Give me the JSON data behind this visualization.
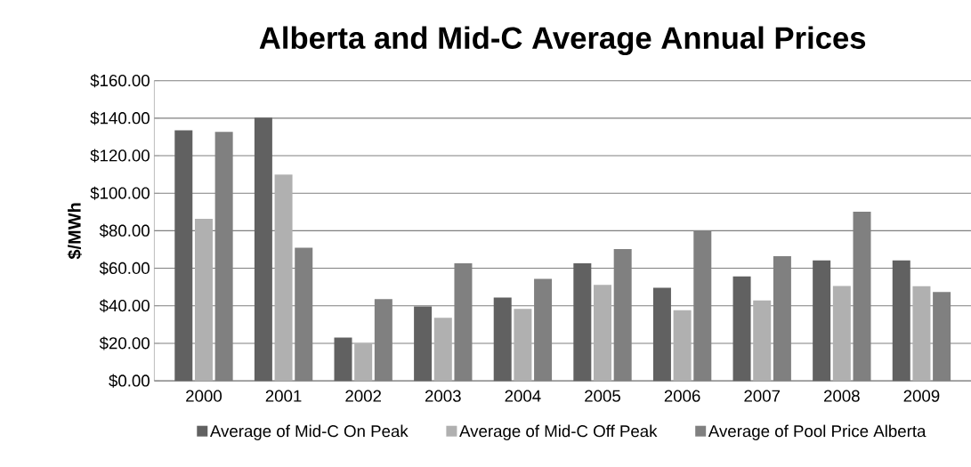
{
  "chart_data": {
    "type": "bar",
    "title": "Alberta and Mid-C Average Annual Prices",
    "ylabel": "$/MWh",
    "categories": [
      "2000",
      "2001",
      "2002",
      "2003",
      "2004",
      "2005",
      "2006",
      "2007",
      "2008",
      "2009"
    ],
    "series": [
      {
        "name": "Average of Mid-C On Peak",
        "color": "#616161",
        "values": [
          133.5,
          140.3,
          23.0,
          39.6,
          44.4,
          62.6,
          49.6,
          55.7,
          64.2,
          64.2
        ]
      },
      {
        "name": "Average of Mid-C Off Peak",
        "color": "#b0b0b0",
        "values": [
          86.3,
          109.9,
          19.8,
          33.6,
          38.4,
          51.2,
          37.6,
          42.8,
          50.6,
          50.4
        ]
      },
      {
        "name": "Average of Pool Price Alberta",
        "color": "#808080",
        "values": [
          132.7,
          71.0,
          43.6,
          62.6,
          54.4,
          70.2,
          79.8,
          66.4,
          90.1,
          47.4
        ]
      }
    ],
    "ylim": [
      0,
      160
    ],
    "yticks": [
      {
        "value": 0,
        "label": "$0.00"
      },
      {
        "value": 20,
        "label": "$20.00"
      },
      {
        "value": 40,
        "label": "$40.00"
      },
      {
        "value": 60,
        "label": "$60.00"
      },
      {
        "value": 80,
        "label": "$80.00"
      },
      {
        "value": 100,
        "label": "$100.00"
      },
      {
        "value": 120,
        "label": "$120.00"
      },
      {
        "value": 140,
        "label": "$140.00"
      },
      {
        "value": 160,
        "label": "$160.00"
      }
    ],
    "grid": "y",
    "legend": "bottom"
  }
}
